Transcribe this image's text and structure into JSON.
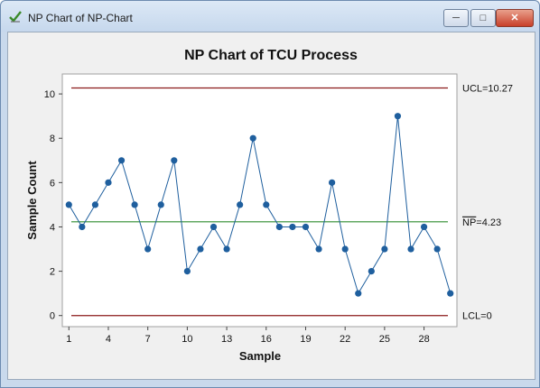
{
  "window": {
    "title": "NP Chart of NP-Chart",
    "icon": "minitab-graph-icon",
    "buttons": {
      "minimize": "minimize-icon",
      "maximize": "maximize-icon",
      "close": "close-icon"
    }
  },
  "chart_data": {
    "type": "line",
    "title": "NP Chart of TCU Process",
    "xlabel": "Sample",
    "ylabel": "Sample Count",
    "x": [
      1,
      2,
      3,
      4,
      5,
      6,
      7,
      8,
      9,
      10,
      11,
      12,
      13,
      14,
      15,
      16,
      17,
      18,
      19,
      20,
      21,
      22,
      23,
      24,
      25,
      26,
      27,
      28,
      29,
      30
    ],
    "values": [
      5,
      4,
      5,
      6,
      7,
      5,
      3,
      5,
      7,
      2,
      3,
      4,
      3,
      5,
      8,
      5,
      4,
      4,
      4,
      3,
      6,
      3,
      1,
      2,
      3,
      9,
      3,
      4,
      3,
      1
    ],
    "xticks": [
      "1",
      "4",
      "7",
      "10",
      "13",
      "16",
      "19",
      "22",
      "25",
      "28"
    ],
    "yticks": [
      "0",
      "2",
      "4",
      "6",
      "8",
      "10"
    ],
    "xlim": [
      0.5,
      30.5
    ],
    "ylim": [
      -0.5,
      10.9
    ],
    "ucl": 10.27,
    "center": 4.23,
    "lcl": 0,
    "ucl_label": "UCL=10.27",
    "center_label_bar": "NP",
    "center_label_rest": "=4.23",
    "lcl_label": "LCL=0",
    "colors": {
      "line": "#1f5f9e",
      "marker": "#1f5f9e",
      "limit": "#8b1a1a",
      "center": "#2e8b2e",
      "plot_bg": "#ffffff",
      "frame_bg": "#f0f0f0"
    }
  }
}
